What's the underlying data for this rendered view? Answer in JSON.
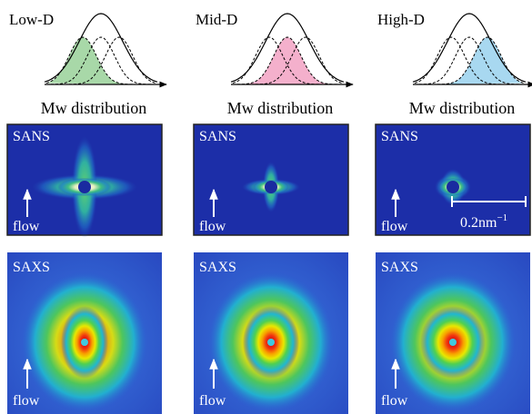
{
  "columns": [
    {
      "label": "Low-D",
      "axis_label": "Mw distribution",
      "sans": {
        "title": "SANS",
        "flow": "flow"
      },
      "saxs": {
        "title": "SAXS",
        "flow": "flow"
      }
    },
    {
      "label": "Mid-D",
      "axis_label": "Mw distribution",
      "sans": {
        "title": "SANS",
        "flow": "flow"
      },
      "saxs": {
        "title": "SAXS",
        "flow": "flow"
      }
    },
    {
      "label": "High-D",
      "axis_label": "Mw distribution",
      "sans": {
        "title": "SANS",
        "flow": "flow"
      },
      "saxs": {
        "title": "SAXS",
        "flow": "flow"
      }
    }
  ],
  "scale_bar": {
    "base": "0.2nm",
    "exponent": "−1"
  }
}
